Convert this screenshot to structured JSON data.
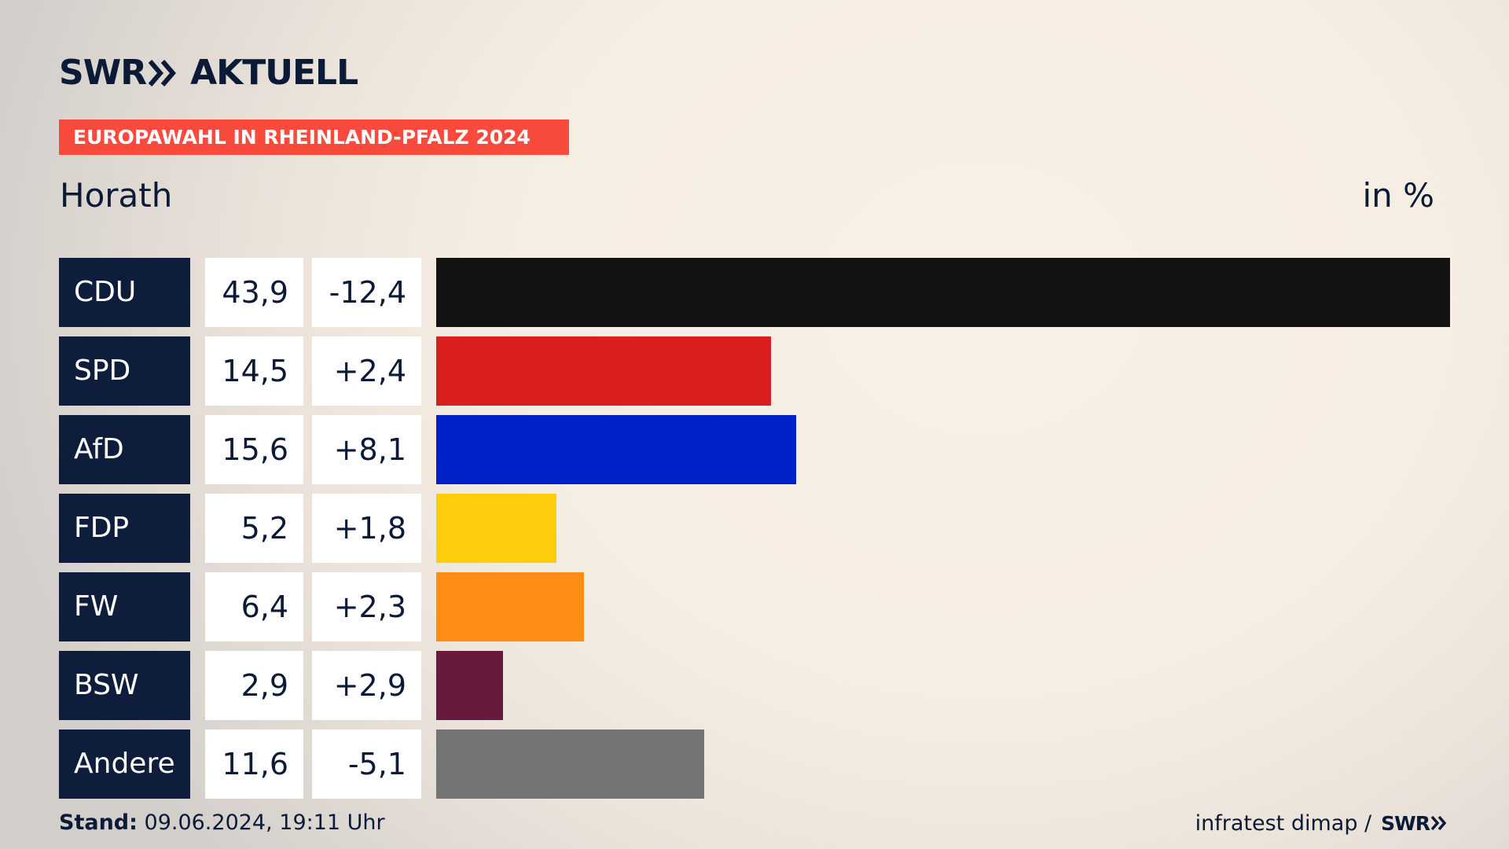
{
  "header": {
    "logo_left": "SWR",
    "logo_right": "AKTUELL",
    "badge": "EUROPAWAHL IN RHEINLAND-PFALZ 2024",
    "region": "Horath",
    "unit": "in %"
  },
  "chart_data": {
    "type": "bar",
    "orientation": "horizontal",
    "categories": [
      "CDU",
      "SPD",
      "AfD",
      "FDP",
      "FW",
      "BSW",
      "Andere"
    ],
    "values": [
      43.9,
      14.5,
      15.6,
      5.2,
      6.4,
      2.9,
      11.6
    ],
    "value_labels": [
      "43,9",
      "14,5",
      "15,6",
      "5,2",
      "6,4",
      "2,9",
      "11,6"
    ],
    "change_labels": [
      "-12,4",
      "+2,4",
      "+8,1",
      "+1,8",
      "+2,3",
      "+2,9",
      "-5,1"
    ],
    "changes": [
      -12.4,
      2.4,
      8.1,
      1.8,
      2.3,
      2.9,
      -5.1
    ],
    "colors": [
      "#131313",
      "#d81e1e",
      "#0021c8",
      "#fdcc0a",
      "#ff8c16",
      "#671a3d",
      "#737475"
    ],
    "unit": "in %"
  },
  "footer": {
    "stand_label": "Stand:",
    "stand_value": "09.06.2024, 19:11 Uhr",
    "source": "infratest dimap /",
    "source_logo": "SWR"
  }
}
